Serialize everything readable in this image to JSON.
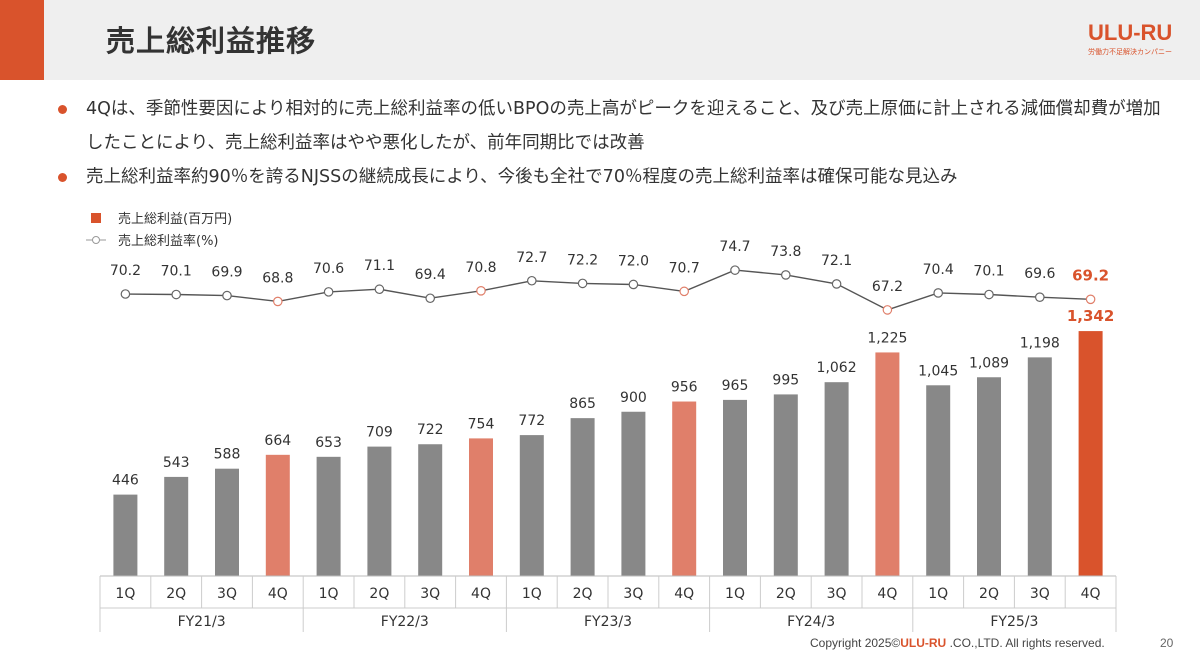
{
  "header": {
    "title": "売上総利益推移"
  },
  "logo": {
    "text": "ULU-RU",
    "tagline": "労働力不足解決カンパニー"
  },
  "bullets": [
    "4Qは、季節性要因により相対的に売上総利益率の低いBPOの売上高がピークを迎えること、及び売上原価に計上される減価償却費が増加したことにより、売上総利益率はやや悪化したが、前年同期比では改善",
    "売上総利益率約90％を誇るNJSSの継続成長により、今後も全社で70％程度の売上総利益率は確保可能な見込み"
  ],
  "chart_data": {
    "type": "bar",
    "legend": [
      {
        "label": "売上総利益(百万円)",
        "kind": "bar"
      },
      {
        "label": "売上総利益率(%)",
        "kind": "line"
      }
    ],
    "categories": [
      "1Q",
      "2Q",
      "3Q",
      "4Q",
      "1Q",
      "2Q",
      "3Q",
      "4Q",
      "1Q",
      "2Q",
      "3Q",
      "4Q",
      "1Q",
      "2Q",
      "3Q",
      "4Q",
      "1Q",
      "2Q",
      "3Q",
      "4Q"
    ],
    "groups": [
      "FY21/3",
      "FY22/3",
      "FY23/3",
      "FY24/3",
      "FY25/3"
    ],
    "series": [
      {
        "name": "売上総利益(百万円)",
        "type": "bar",
        "values": [
          446,
          543,
          588,
          664,
          653,
          709,
          722,
          754,
          772,
          865,
          900,
          956,
          965,
          995,
          1062,
          1225,
          1045,
          1089,
          1198,
          1342
        ],
        "labels": [
          "446",
          "543",
          "588",
          "664",
          "653",
          "709",
          "722",
          "754",
          "772",
          "865",
          "900",
          "956",
          "965",
          "995",
          "1,062",
          "1,225",
          "1,045",
          "1,089",
          "1,198",
          "1,342"
        ]
      },
      {
        "name": "売上総利益率(%)",
        "type": "line",
        "values": [
          70.2,
          70.1,
          69.9,
          68.8,
          70.6,
          71.1,
          69.4,
          70.8,
          72.7,
          72.2,
          72.0,
          70.7,
          74.7,
          73.8,
          72.1,
          67.2,
          70.4,
          70.1,
          69.6,
          69.2
        ],
        "labels": [
          "70.2",
          "70.1",
          "69.9",
          "68.8",
          "70.6",
          "71.1",
          "69.4",
          "70.8",
          "72.7",
          "72.2",
          "72.0",
          "70.7",
          "74.7",
          "73.8",
          "72.1",
          "67.2",
          "70.4",
          "70.1",
          "69.6",
          "69.2"
        ]
      }
    ],
    "colors": {
      "bar": "#888888",
      "bar_q4": "#e07f6a",
      "bar_latest": "#d9532c",
      "line": "#555555",
      "highlight": "#d9532c"
    }
  },
  "footer": {
    "prefix": "Copyright 2025©",
    "brand": "ULU-RU",
    "suffix": " .CO.,LTD. All rights reserved."
  },
  "page_number": "20"
}
